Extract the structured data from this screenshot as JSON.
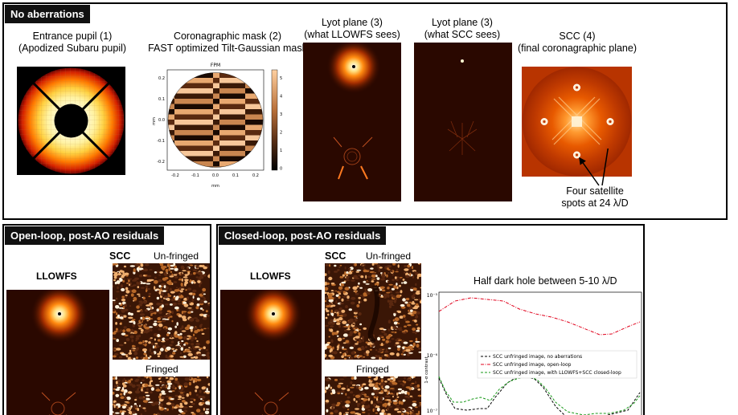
{
  "top": {
    "tag": "No aberrations",
    "entrance_title": "Entrance pupil (1)",
    "entrance_sub": "(Apodized Subaru pupil)",
    "mask_title": "Coronagraphic mask (2)",
    "mask_sub": "FAST optimized Tilt-Gaussian mask",
    "mask_plot": {
      "title": "FPM",
      "ylabel": "mm",
      "xlabel": "mm",
      "yticks": [
        "0.2",
        "0.1",
        "0.0",
        "-0.1",
        "-0.2"
      ],
      "xticks": [
        "-0.2",
        "-0.1",
        "0.0",
        "0.1",
        "0.2"
      ],
      "cbar_ticks": [
        "5",
        "4",
        "3",
        "2",
        "1",
        "0"
      ]
    },
    "lyot_llowfs_title": "Lyot plane (3)",
    "lyot_llowfs_sub": "(what LLOWFS sees)",
    "lyot_scc_title": "Lyot plane (3)",
    "lyot_scc_sub": "(what SCC sees)",
    "scc_title": "SCC (4)",
    "scc_sub": "(final coronagraphic plane)",
    "satellite_line1": "Four satellite",
    "satellite_line2": "spots at 24 λ/D"
  },
  "open_loop": {
    "tag": "Open-loop, post-AO residuals",
    "llowfs": "LLOWFS",
    "scc": "SCC",
    "unfringed": "Un-fringed",
    "fringed": "Fringed"
  },
  "closed_loop": {
    "tag": "Closed-loop, post-AO residuals",
    "llowfs": "LLOWFS",
    "scc": "SCC",
    "unfringed": "Un-fringed",
    "fringed": "Fringed"
  },
  "contrast_plot": {
    "title": "Half dark hole between 5-10 λ/D",
    "ylabel": "1-σ contrast",
    "ytick_top": "10⁻⁵",
    "ytick_mid": "10⁻⁶",
    "ytick_bot": "10⁻⁷",
    "legend": [
      "SCC unfringed image, no aberrations",
      "SCC unfringed image, open-loop",
      "SCC unfringed image, with LLOWFS+SCC closed-loop"
    ],
    "colors": {
      "no_aberr": "#000000",
      "open": "#e0001b",
      "closed": "#1a9a1a"
    }
  }
}
